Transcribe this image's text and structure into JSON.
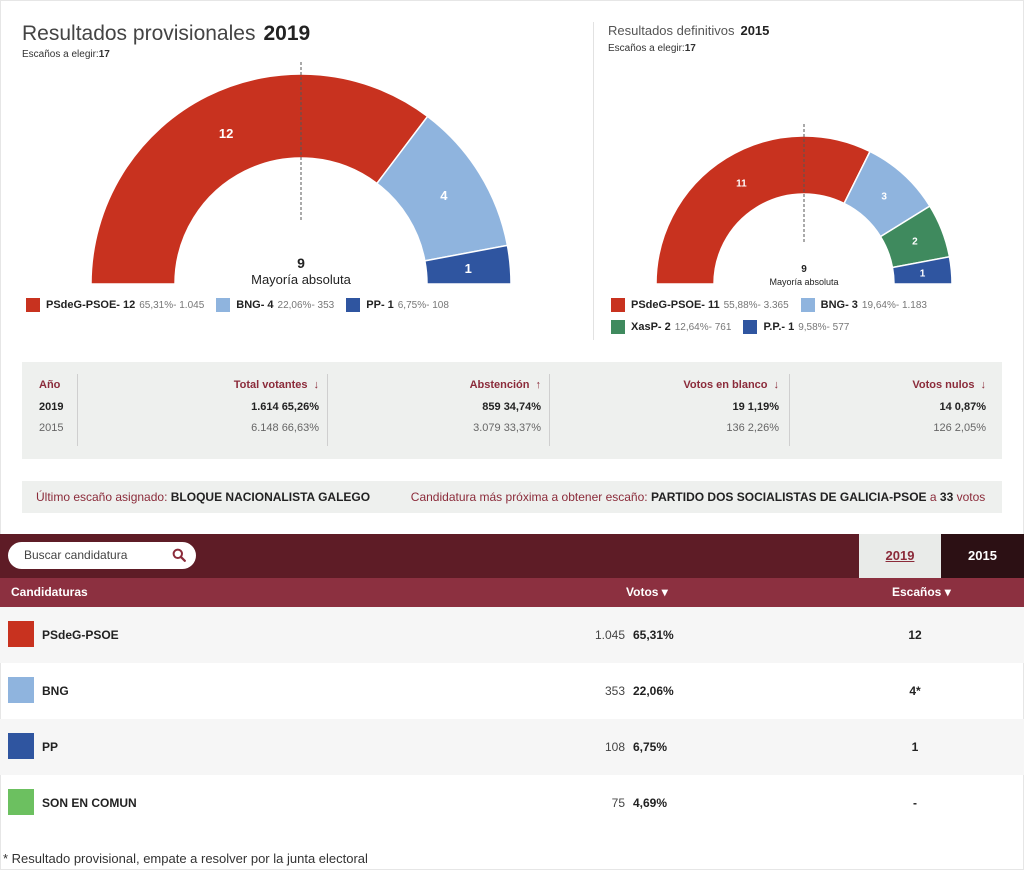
{
  "left": {
    "title": "Resultados provisionales",
    "year": "2019",
    "seats_label": "Escaños a elegir:",
    "seats_value": "17",
    "majority_value": "9",
    "majority_label": "Mayoría absoluta",
    "parties": [
      {
        "name": "PSdeG-PSOE",
        "seats": "12",
        "pct": "65,31%- 1.045",
        "color": "#c8321f"
      },
      {
        "name": "BNG",
        "seats": "4",
        "pct": "22,06%- 353",
        "color": "#8fb4de"
      },
      {
        "name": "PP",
        "seats": "1",
        "pct": "6,75%- 108",
        "color": "#2f55a0"
      }
    ]
  },
  "right": {
    "title": "Resultados definitivos",
    "year": "2015",
    "seats_label": "Escaños a elegir:",
    "seats_value": "17",
    "majority_value": "9",
    "majority_label": "Mayoría absoluta",
    "parties": [
      {
        "name": "PSdeG-PSOE",
        "seats": "11",
        "pct": "55,88%- 3.365",
        "color": "#c8321f"
      },
      {
        "name": "BNG",
        "seats": "3",
        "pct": "19,64%- 1.183",
        "color": "#8fb4de"
      },
      {
        "name": "XasP",
        "seats": "2",
        "pct": "12,64%- 761",
        "color": "#3f8a5e"
      },
      {
        "name": "P.P.",
        "seats": "1",
        "pct": "9,58%- 577",
        "color": "#2f55a0"
      }
    ]
  },
  "stats": {
    "year_header": "Año",
    "votantes_header": "Total votantes",
    "abst_header": "Abstención",
    "blanco_header": "Votos en blanco",
    "nulos_header": "Votos nulos",
    "arrow_down": "↓",
    "arrow_up": "↑",
    "rows": [
      {
        "year": "2019",
        "votantes": "1.614",
        "votantes_pct": "65,26%",
        "abst": "859",
        "abst_pct": "34,74%",
        "blanco": "19",
        "blanco_pct": "1,19%",
        "nulos": "14",
        "nulos_pct": "0,87%"
      },
      {
        "year": "2015",
        "votantes": "6.148",
        "votantes_pct": "66,63%",
        "abst": "3.079",
        "abst_pct": "33,37%",
        "blanco": "136",
        "blanco_pct": "2,26%",
        "nulos": "126",
        "nulos_pct": "2,05%"
      }
    ]
  },
  "info": {
    "last_label": "Último escaño asignado:",
    "last_value": "BLOQUE NACIONALISTA GALEGO",
    "next_label": "Candidatura más próxima a obtener escaño:",
    "next_value": "PARTIDO DOS SOCIALISTAS DE GALICIA-PSOE",
    "next_a": "a",
    "next_votes": "33",
    "next_votes_label": "votos"
  },
  "table": {
    "search_placeholder": "Buscar candidatura",
    "tab_2019": "2019",
    "tab_2015": "2015",
    "col_candidaturas": "Candidaturas",
    "col_votos": "Votos ▾",
    "col_escanos": "Escaños ▾",
    "rows": [
      {
        "name": "PSdeG-PSOE",
        "votes": "1.045",
        "pct": "65,31%",
        "seats": "12",
        "color": "#c8321f"
      },
      {
        "name": "BNG",
        "votes": "353",
        "pct": "22,06%",
        "seats": "4*",
        "color": "#8fb4de"
      },
      {
        "name": "PP",
        "votes": "108",
        "pct": "6,75%",
        "seats": "1",
        "color": "#2f55a0"
      },
      {
        "name": "SON EN COMUN",
        "votes": "75",
        "pct": "4,69%",
        "seats": "-",
        "color": "#6cc060"
      }
    ]
  },
  "footnote": "* Resultado provisional, empate a resolver por la junta electoral"
}
